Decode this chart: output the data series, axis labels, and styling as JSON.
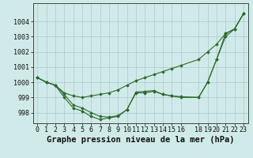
{
  "title": "Graphe pression niveau de la mer (hPa)",
  "x_hours": [
    0,
    1,
    2,
    3,
    4,
    5,
    6,
    7,
    8,
    9,
    10,
    11,
    12,
    13,
    14,
    15,
    16,
    18,
    19,
    20,
    21,
    22,
    23
  ],
  "line1": [
    1000.3,
    1000.0,
    999.8,
    999.3,
    999.1,
    999.0,
    999.1,
    999.2,
    999.3,
    999.5,
    999.8,
    1000.1,
    1000.3,
    1000.5,
    1000.7,
    1000.9,
    1001.1,
    1001.5,
    1002.0,
    1002.5,
    1003.2,
    1003.5,
    1004.5
  ],
  "line2": [
    1000.3,
    1000.0,
    999.8,
    999.2,
    998.5,
    998.3,
    998.0,
    997.75,
    997.7,
    997.8,
    998.2,
    999.3,
    999.3,
    999.4,
    999.2,
    999.1,
    999.0,
    999.0,
    1000.0,
    1001.5,
    1003.2,
    1003.5,
    1004.5
  ],
  "line3": [
    1000.3,
    1000.0,
    999.8,
    999.0,
    998.3,
    998.1,
    997.75,
    997.55,
    997.65,
    997.75,
    998.2,
    999.35,
    999.4,
    999.45,
    999.2,
    999.1,
    999.05,
    999.0,
    1000.0,
    1001.5,
    1003.0,
    1003.5,
    1004.5
  ],
  "line_color": "#2d6a2d",
  "bg_color": "#d0eaea",
  "grid_color": "#aacaca",
  "ylim": [
    997.3,
    1005.2
  ],
  "yticks": [
    998,
    999,
    1000,
    1001,
    1002,
    1003,
    1004
  ],
  "xticks": [
    0,
    1,
    2,
    3,
    4,
    5,
    6,
    7,
    8,
    9,
    10,
    11,
    12,
    13,
    14,
    15,
    16,
    18,
    19,
    20,
    21,
    22,
    23
  ],
  "title_fontsize": 7.5,
  "tick_fontsize": 6.0
}
